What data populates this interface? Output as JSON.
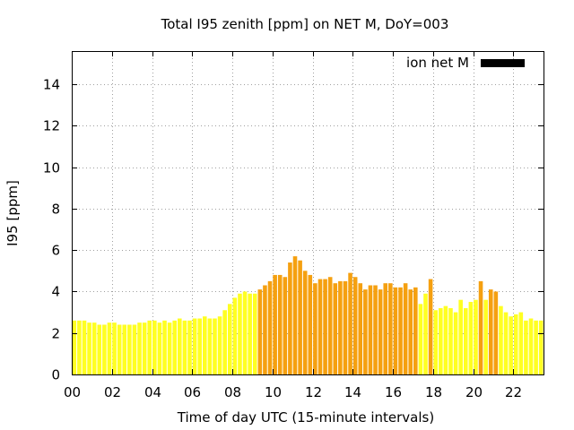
{
  "chart_data": {
    "type": "bar",
    "title": "Total I95 zenith [ppm] on NET M, DoY=003",
    "xlabel": "Time of day UTC (15-minute intervals)",
    "ylabel": "I95 [ppm]",
    "x_tick_labels": [
      "00",
      "02",
      "04",
      "06",
      "08",
      "10",
      "12",
      "14",
      "16",
      "18",
      "20",
      "22"
    ],
    "y_tick_labels": [
      "0",
      "2",
      "4",
      "6",
      "8",
      "10",
      "12",
      "14"
    ],
    "y_ticks": [
      0,
      2,
      4,
      6,
      8,
      10,
      12,
      14
    ],
    "xlim": [
      0,
      23.5
    ],
    "ylim": [
      0,
      15.6
    ],
    "grid": true,
    "legend": {
      "label": "ion net M",
      "color": "#000000",
      "placement": "top-right"
    },
    "bar_interval_hours": 0.25,
    "colors": {
      "low": "#ffff22",
      "high": "#f5a010"
    },
    "series": [
      {
        "values": [
          2.6,
          2.6,
          2.6,
          2.5,
          2.5,
          2.4,
          2.4,
          2.5,
          2.5,
          2.4,
          2.4,
          2.4,
          2.4,
          2.5,
          2.5,
          2.6,
          2.6,
          2.5,
          2.6,
          2.5,
          2.6,
          2.7,
          2.6,
          2.6,
          2.7,
          2.7,
          2.8,
          2.7,
          2.7,
          2.8,
          3.1,
          3.4,
          3.7,
          3.9,
          4.0,
          3.9,
          3.9,
          4.1,
          4.3,
          4.5,
          4.8,
          4.8,
          4.7,
          5.4,
          5.7,
          5.5,
          5.0,
          4.8,
          4.4,
          4.6,
          4.6,
          4.7,
          4.4,
          4.5,
          4.5,
          4.9,
          4.7,
          4.4,
          4.1,
          4.3,
          4.3,
          4.1,
          4.4,
          4.4,
          4.2,
          4.2,
          4.4,
          4.1,
          4.2,
          3.4,
          3.9,
          4.6,
          3.1,
          3.2,
          3.3,
          3.2,
          3.0,
          3.6,
          3.2,
          3.5,
          3.6,
          4.5,
          3.6,
          4.1,
          4.0,
          3.3,
          3.0,
          2.8,
          2.9,
          3.0,
          2.6,
          2.7,
          2.6,
          2.6
        ],
        "levels": [
          "low",
          "low",
          "low",
          "low",
          "low",
          "low",
          "low",
          "low",
          "low",
          "low",
          "low",
          "low",
          "low",
          "low",
          "low",
          "low",
          "low",
          "low",
          "low",
          "low",
          "low",
          "low",
          "low",
          "low",
          "low",
          "low",
          "low",
          "low",
          "low",
          "low",
          "low",
          "low",
          "low",
          "low",
          "low",
          "low",
          "low",
          "high",
          "high",
          "high",
          "high",
          "high",
          "high",
          "high",
          "high",
          "high",
          "high",
          "high",
          "high",
          "high",
          "high",
          "high",
          "high",
          "high",
          "high",
          "high",
          "high",
          "high",
          "high",
          "high",
          "high",
          "high",
          "high",
          "high",
          "high",
          "high",
          "high",
          "high",
          "high",
          "low",
          "low",
          "high",
          "low",
          "low",
          "low",
          "low",
          "low",
          "low",
          "low",
          "low",
          "low",
          "high",
          "low",
          "high",
          "high",
          "low",
          "low",
          "low",
          "low",
          "low",
          "low",
          "low",
          "low",
          "low"
        ]
      }
    ]
  }
}
